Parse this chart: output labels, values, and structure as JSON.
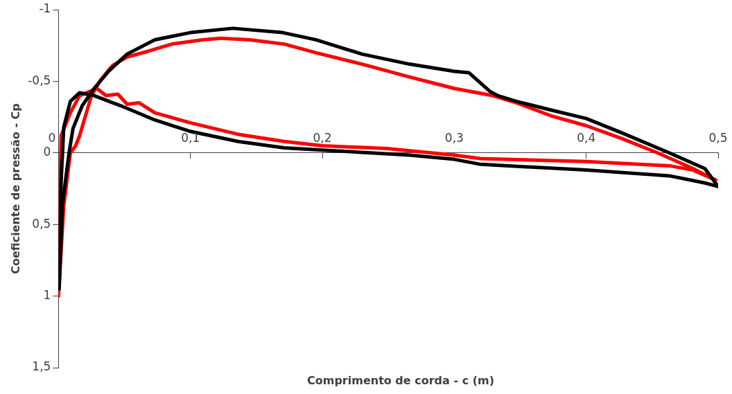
{
  "chart_data": {
    "type": "line",
    "xlabel": "Comprimento de corda - c (m)",
    "ylabel": "Coeficiente de pressão - Cp",
    "xlim": [
      0,
      0.5
    ],
    "xticks": [
      0,
      {
        "value": 0.1,
        "label": "0,1"
      },
      {
        "value": 0.2,
        "label": "0,2"
      },
      {
        "value": 0.3,
        "label": "0,3"
      },
      {
        "value": 0.4,
        "label": "0,4"
      },
      {
        "value": 0.5,
        "label": "0,5"
      }
    ],
    "ylim": [
      1.5,
      -1
    ],
    "yticks": [
      -1,
      {
        "value": -0.5,
        "label": "-0,5"
      },
      0,
      {
        "value": 0.5,
        "label": "0,5"
      },
      1,
      {
        "value": 1.5,
        "label": "1,5"
      }
    ],
    "grid": false,
    "legend": false,
    "marker": "none",
    "line_style": "solid",
    "series": [
      {
        "color": "#000000",
        "x": [
          0.0005,
          0.002,
          0.003,
          0.008,
          0.011,
          0.018,
          0.027,
          0.038,
          0.052,
          0.073,
          0.1,
          0.132,
          0.17,
          0.195,
          0.23,
          0.266,
          0.3,
          0.311,
          0.327,
          0.333,
          0.347,
          0.373,
          0.4,
          0.427,
          0.463,
          0.49,
          0.5
        ],
        "values": [
          0.95,
          0.6,
          0.36,
          0.0,
          -0.17,
          -0.33,
          -0.45,
          -0.57,
          -0.69,
          -0.79,
          -0.84,
          -0.87,
          -0.84,
          -0.79,
          -0.69,
          -0.62,
          -0.57,
          -0.56,
          -0.43,
          -0.4,
          -0.36,
          -0.3,
          -0.24,
          -0.14,
          0.0,
          0.11,
          0.235
        ]
      },
      {
        "color": "#000000",
        "x": [
          0.0005,
          0.002,
          0.004,
          0.009,
          0.016,
          0.027,
          0.047,
          0.073,
          0.1,
          0.136,
          0.171,
          0.2,
          0.266,
          0.3,
          0.32,
          0.4,
          0.463,
          0.49,
          0.5
        ],
        "values": [
          0.95,
          0.2,
          -0.18,
          -0.36,
          -0.42,
          -0.4,
          -0.33,
          -0.23,
          -0.15,
          -0.08,
          -0.035,
          -0.02,
          0.015,
          0.045,
          0.08,
          0.12,
          0.16,
          0.21,
          0.235
        ]
      },
      {
        "color": "#ff0000",
        "x": [
          0.0,
          0.004,
          0.009,
          0.013,
          0.016,
          0.025,
          0.032,
          0.041,
          0.052,
          0.068,
          0.086,
          0.109,
          0.123,
          0.145,
          0.171,
          0.195,
          0.23,
          0.266,
          0.3,
          0.329,
          0.347,
          0.373,
          0.4,
          0.427,
          0.454,
          0.481,
          0.498
        ],
        "values": [
          1.0,
          0.37,
          0.0,
          -0.05,
          -0.12,
          -0.4,
          -0.51,
          -0.61,
          -0.67,
          -0.71,
          -0.76,
          -0.79,
          -0.8,
          -0.79,
          -0.76,
          -0.7,
          -0.62,
          -0.53,
          -0.45,
          -0.4,
          -0.35,
          -0.26,
          -0.19,
          -0.1,
          0.0,
          0.11,
          0.19
        ]
      },
      {
        "color": "#ff0000",
        "x": [
          0.0,
          0.001,
          0.002,
          0.009,
          0.016,
          0.029,
          0.036,
          0.045,
          0.052,
          0.061,
          0.073,
          0.1,
          0.136,
          0.171,
          0.2,
          0.249,
          0.3,
          0.32,
          0.4,
          0.463,
          0.481,
          0.498
        ],
        "values": [
          1.0,
          0.5,
          -0.12,
          -0.28,
          -0.4,
          -0.45,
          -0.4,
          -0.41,
          -0.34,
          -0.35,
          -0.28,
          -0.21,
          -0.13,
          -0.08,
          -0.05,
          -0.03,
          0.015,
          0.04,
          0.06,
          0.09,
          0.12,
          0.19
        ]
      }
    ]
  }
}
